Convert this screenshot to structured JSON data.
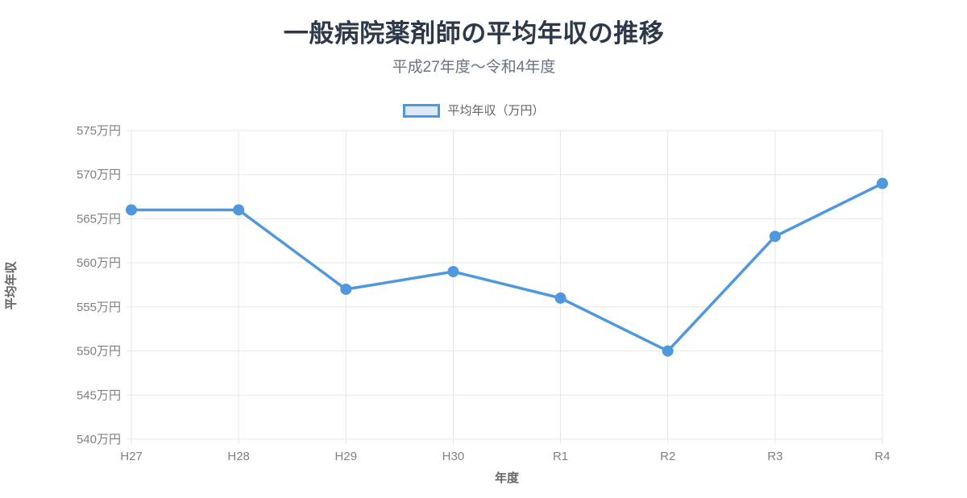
{
  "header": {
    "title": "一般病院薬剤師の平均年収の推移",
    "subtitle": "平成27年度〜令和4年度"
  },
  "legend": {
    "label": "平均年収（万円）",
    "swatch_fill": "#dce9f9",
    "swatch_border": "#4f96dd"
  },
  "chart_data": {
    "type": "line",
    "title": "一般病院薬剤師の平均年収の推移",
    "subtitle": "平成27年度〜令和4年度",
    "categories": [
      "H27",
      "H28",
      "H29",
      "H30",
      "R1",
      "R2",
      "R3",
      "R4"
    ],
    "series": [
      {
        "name": "平均年収（万円）",
        "values": [
          566,
          566,
          557,
          559,
          556,
          550,
          563,
          569
        ]
      }
    ],
    "xlabel": "年度",
    "ylabel": "平均年収",
    "ylim": [
      540,
      575
    ],
    "ytick_step": 5,
    "ytick_suffix": "万円",
    "grid": true,
    "legend_position": "top",
    "line_color": "#4f97de",
    "grid_color": "#e7e7e7",
    "tick_color": "#808080",
    "point_radius": 7,
    "line_width": 3.5
  }
}
